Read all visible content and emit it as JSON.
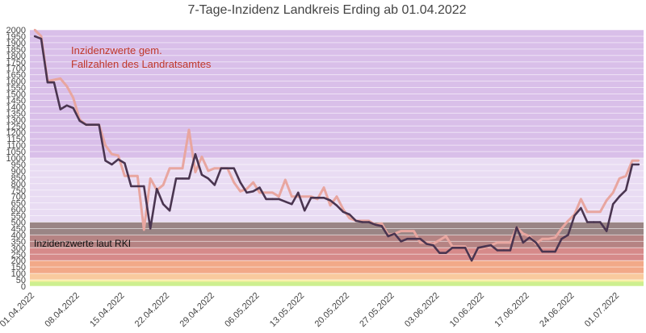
{
  "chart_data": {
    "type": "line",
    "title": "7-Tage-Inzidenz Landkreis Erding ab 01.04.2022",
    "ylim": [
      0,
      2000
    ],
    "y_ticks": [
      0,
      50,
      100,
      150,
      200,
      250,
      300,
      350,
      400,
      450,
      500,
      550,
      600,
      650,
      700,
      750,
      800,
      850,
      900,
      950,
      1000,
      1050,
      1100,
      1150,
      1200,
      1250,
      1300,
      1350,
      1400,
      1450,
      1500,
      1550,
      1600,
      1650,
      1700,
      1750,
      1800,
      1850,
      1900,
      1950,
      2000
    ],
    "x_tick_labels": [
      "01.04.2022",
      "08.04.2022",
      "15.04.2022",
      "22.04.2022",
      "29.04.2022",
      "06.05.2022",
      "13.05.2022",
      "20.05.2022",
      "27.05.2022",
      "03.06.2022",
      "10.06.2022",
      "17.06.2022",
      "24.06.2022",
      "01.07.2022"
    ],
    "grid": true,
    "annotations": {
      "landratsamt": [
        "Inzidenzwerte gem.",
        "Fallzahlen des Landratsamtes"
      ],
      "rki": "Inzidenzwerte laut RKI"
    },
    "bands": [
      {
        "from": 1000,
        "to": 2000,
        "color": "#d9bfe9"
      },
      {
        "from": 500,
        "to": 1000,
        "color": "#e9dcf3"
      },
      {
        "from": 400,
        "to": 500,
        "color": "#9a8585"
      },
      {
        "from": 300,
        "to": 400,
        "color": "#b58383"
      },
      {
        "from": 200,
        "to": 300,
        "color": "#d68a8a"
      },
      {
        "from": 100,
        "to": 200,
        "color": "#f2a988"
      },
      {
        "from": 50,
        "to": 100,
        "color": "#f9ca9e"
      },
      {
        "from": 35,
        "to": 50,
        "color": "#f7ef9c"
      },
      {
        "from": 0,
        "to": 35,
        "color": "#cdef8f"
      }
    ],
    "x_start": "01.04.2022",
    "series": [
      {
        "color": "#e8a6a0",
        "values": [
          2000,
          1950,
          1600,
          1610,
          1620,
          1560,
          1470,
          1300,
          1260,
          1260,
          1260,
          1100,
          1030,
          1020,
          860,
          860,
          860,
          440,
          840,
          750,
          790,
          920,
          920,
          920,
          1220,
          890,
          1010,
          900,
          920,
          920,
          920,
          810,
          740,
          760,
          810,
          730,
          730,
          730,
          700,
          830,
          700,
          700,
          700,
          700,
          680,
          770,
          630,
          700,
          600,
          530,
          510,
          510,
          510,
          480,
          490,
          400,
          410,
          430,
          430,
          430,
          340,
          340,
          330,
          360,
          390,
          310,
          310,
          310,
          210,
          290,
          300,
          320,
          340,
          340,
          340,
          460,
          410,
          390,
          330,
          370,
          370,
          380,
          450,
          510,
          560,
          680,
          580,
          580,
          580,
          670,
          730,
          840,
          860,
          980,
          980
        ]
      },
      {
        "color": "#4a3550",
        "values": [
          1950,
          1930,
          1590,
          1590,
          1380,
          1410,
          1390,
          1290,
          1260,
          1260,
          1260,
          980,
          950,
          990,
          960,
          780,
          780,
          780,
          450,
          760,
          640,
          590,
          840,
          840,
          840,
          1030,
          870,
          840,
          790,
          920,
          920,
          920,
          810,
          730,
          740,
          770,
          680,
          680,
          680,
          660,
          640,
          730,
          590,
          690,
          690,
          690,
          670,
          630,
          580,
          560,
          510,
          500,
          500,
          480,
          470,
          390,
          410,
          350,
          370,
          370,
          370,
          330,
          320,
          260,
          260,
          300,
          300,
          300,
          200,
          300,
          310,
          320,
          280,
          280,
          280,
          460,
          340,
          380,
          340,
          270,
          270,
          270,
          370,
          400,
          550,
          610,
          500,
          500,
          500,
          430,
          640,
          700,
          750,
          950,
          950
        ]
      }
    ]
  }
}
